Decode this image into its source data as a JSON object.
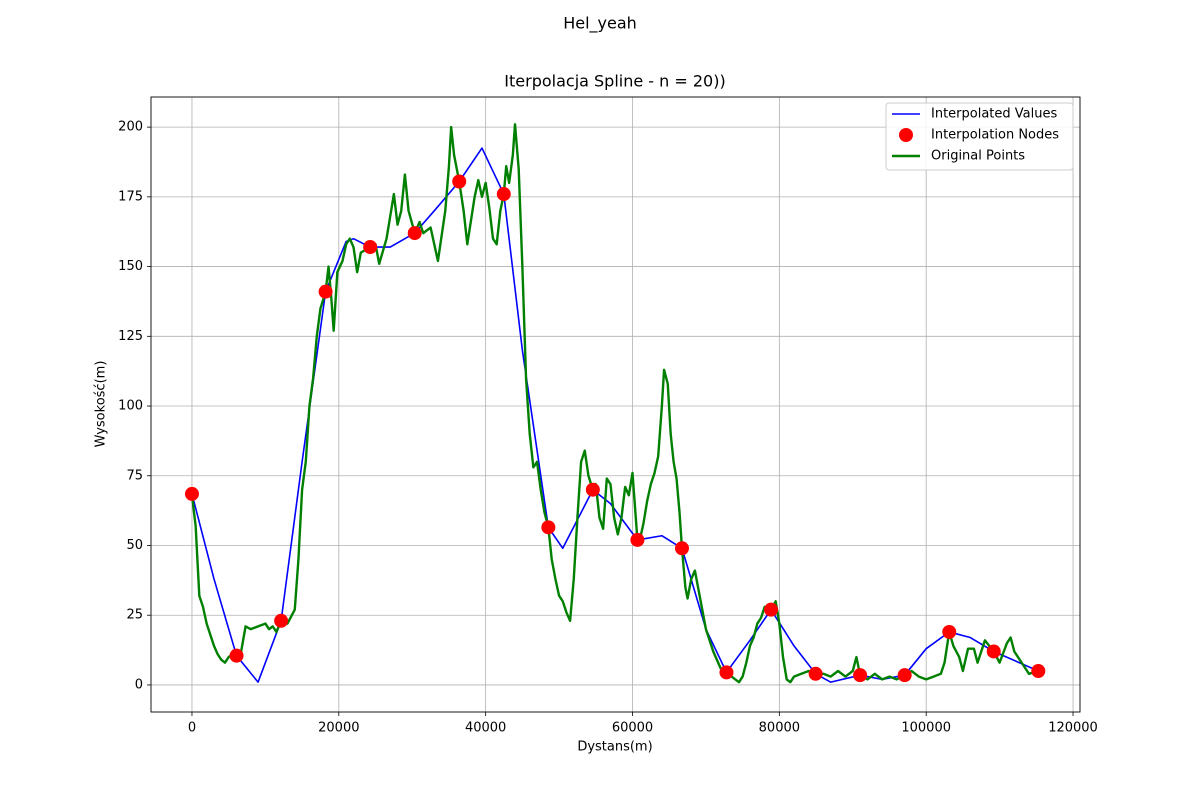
{
  "chart_data": {
    "type": "line",
    "suptitle": "Hel_yeah",
    "title": "Iterpolacja Spline - n = 20))",
    "xlabel": "Dystans(m)",
    "ylabel": "Wysokość(m)",
    "xlim": [
      -5580,
      120950
    ],
    "ylim": [
      -9.7,
      210.8
    ],
    "xticks": [
      0,
      20000,
      40000,
      60000,
      80000,
      100000,
      120000
    ],
    "yticks": [
      0,
      25,
      50,
      75,
      100,
      125,
      150,
      175,
      200
    ],
    "grid": true,
    "legend": "upper right",
    "series": [
      {
        "name": "Interpolated Values",
        "color": "#0000ff",
        "mark": "line",
        "x": [
          0,
          3000,
          6070,
          9000,
          12140,
          15000,
          18200,
          21000,
          22000,
          24270,
          27000,
          30340,
          33000,
          36400,
          39500,
          42470,
          45000,
          48540,
          50500,
          54600,
          57000,
          60670,
          64000,
          66740,
          70000,
          72800,
          76000,
          78870,
          82000,
          84940,
          87000,
          91000,
          94000,
          97070,
          100000,
          103140,
          106000,
          109200,
          115270
        ],
        "values": [
          68.5,
          38,
          10.5,
          1,
          23,
          80,
          141,
          159,
          160,
          157,
          157,
          162,
          170,
          180.5,
          192.5,
          176,
          120,
          56.5,
          49,
          70,
          65,
          52,
          53.5,
          49,
          20,
          4.5,
          16,
          27,
          14,
          4,
          1,
          3.5,
          2,
          3.5,
          13,
          19,
          17,
          12,
          5
        ]
      },
      {
        "name": "Interpolation Nodes",
        "color": "#ff0000",
        "mark": "marker",
        "x": [
          0,
          6070,
          12140,
          18200,
          24270,
          30340,
          36400,
          42470,
          48540,
          54600,
          60670,
          66740,
          72800,
          78870,
          84940,
          91000,
          97070,
          103140,
          109200,
          115270
        ],
        "values": [
          68.5,
          10.5,
          23,
          141,
          157,
          162,
          180.5,
          176,
          56.5,
          70,
          52,
          49,
          4.5,
          27,
          4,
          3.5,
          3.5,
          19,
          12,
          5
        ]
      },
      {
        "name": "Original Points",
        "color": "#008000",
        "mark": "line",
        "x": [
          0,
          500,
          1000,
          1500,
          2000,
          2500,
          3000,
          3500,
          4000,
          4500,
          5000,
          5500,
          6070,
          6700,
          7300,
          8000,
          9000,
          10000,
          10500,
          11000,
          11500,
          12140,
          13000,
          14000,
          14500,
          15000,
          15500,
          16000,
          16500,
          17000,
          17500,
          18200,
          18600,
          19000,
          19300,
          19800,
          20500,
          21000,
          21500,
          22000,
          22500,
          23000,
          24270,
          25000,
          25500,
          26500,
          27500,
          28000,
          28500,
          29000,
          29500,
          30340,
          31000,
          31500,
          32500,
          33500,
          34500,
          35000,
          35300,
          35700,
          36400,
          37000,
          37500,
          38500,
          39000,
          39500,
          40000,
          40500,
          41000,
          41500,
          42000,
          42470,
          42800,
          43200,
          43700,
          44000,
          44500,
          45000,
          45500,
          46000,
          46500,
          47000,
          47500,
          48000,
          48540,
          49000,
          49500,
          50000,
          50500,
          51000,
          51500,
          52000,
          52500,
          53000,
          53500,
          54000,
          54600,
          55000,
          55500,
          56000,
          56500,
          57000,
          57500,
          58000,
          58500,
          59000,
          59500,
          60000,
          60670,
          61000,
          61500,
          62000,
          62500,
          63000,
          63500,
          64000,
          64300,
          64800,
          65200,
          65600,
          66000,
          66400,
          66740,
          67200,
          67500,
          68000,
          68500,
          69000,
          69500,
          70000,
          71000,
          72000,
          72800,
          73500,
          74500,
          75000,
          75500,
          76000,
          76500,
          77000,
          77500,
          78000,
          78870,
          79500,
          80000,
          80500,
          81000,
          81500,
          82000,
          83000,
          84000,
          84940,
          86000,
          87000,
          88000,
          89000,
          90000,
          90500,
          91000,
          92000,
          93000,
          94000,
          95000,
          96000,
          97070,
          98000,
          99000,
          100000,
          101000,
          102000,
          102500,
          103140,
          103700,
          104500,
          105000,
          105700,
          106500,
          107000,
          108000,
          109200,
          110000,
          111000,
          111500,
          112000,
          113000,
          114000,
          115270
        ],
        "values": [
          68,
          57,
          32,
          28,
          22,
          18,
          14,
          11,
          9,
          8,
          10,
          11,
          10.5,
          12,
          21,
          20,
          21,
          22,
          20,
          21,
          19,
          23,
          22,
          27,
          45,
          70,
          80,
          100,
          110,
          125,
          135,
          141,
          150,
          138,
          127,
          148,
          152,
          158,
          160,
          157,
          148,
          155,
          157,
          158,
          151,
          160,
          176,
          165,
          170,
          183,
          170,
          162,
          166,
          162,
          164,
          152,
          170,
          186,
          200,
          190,
          180.5,
          170,
          158,
          175,
          181,
          175,
          180,
          171,
          160,
          158,
          170,
          176,
          186,
          180,
          190,
          201,
          185,
          150,
          110,
          90,
          78,
          80,
          70,
          62,
          56.5,
          45,
          38,
          32,
          30,
          26,
          23,
          38,
          60,
          80,
          84,
          75,
          70,
          72,
          60,
          56,
          74,
          72,
          60,
          54,
          60,
          71,
          68,
          76,
          52,
          52,
          58,
          66,
          72,
          76,
          82,
          100,
          113,
          108,
          90,
          80,
          74,
          62,
          49,
          35,
          31,
          38,
          41,
          34,
          27,
          20,
          12,
          6,
          4.5,
          3,
          1,
          3,
          8,
          14,
          17,
          22,
          24,
          28,
          27,
          30,
          22,
          10,
          2,
          1,
          3,
          4,
          5,
          4,
          4,
          3,
          5,
          3,
          5,
          10,
          3.5,
          2,
          4,
          2,
          3,
          2,
          3.5,
          5,
          3,
          2,
          3,
          4,
          8,
          19,
          14,
          10,
          5,
          13,
          13,
          8,
          16,
          12,
          8,
          15,
          17,
          12,
          8,
          4,
          5
        ]
      }
    ]
  }
}
